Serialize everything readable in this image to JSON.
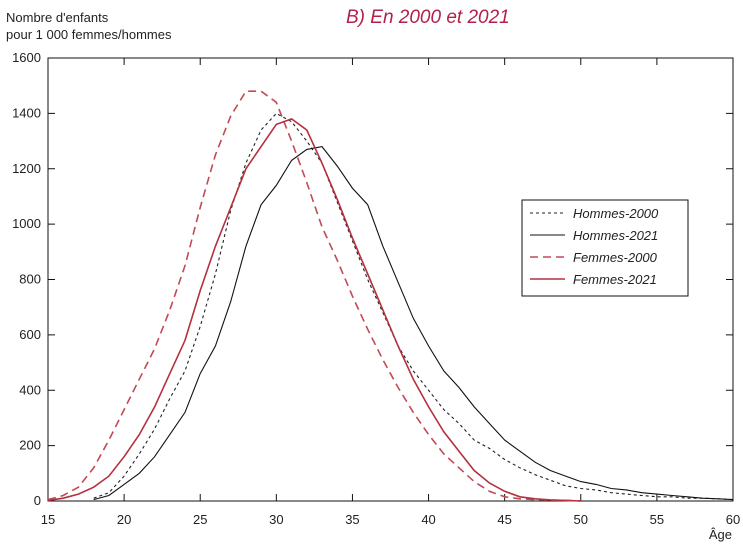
{
  "chart_data": {
    "type": "line",
    "title": "B) En 2000 et 2021",
    "ylabel_line1": "Nombre d'enfants",
    "ylabel_line2": "pour 1 000 femmes/hommes",
    "xlabel": "Âge",
    "xlim": [
      15,
      60
    ],
    "ylim": [
      0,
      1600
    ],
    "xticks": [
      15,
      20,
      25,
      30,
      35,
      40,
      45,
      50,
      55,
      60
    ],
    "yticks": [
      0,
      200,
      400,
      600,
      800,
      1000,
      1200,
      1400,
      1600
    ],
    "legend_position": "right",
    "series": [
      {
        "name": "Hommes-2000",
        "color": "#222222",
        "style": "dotted",
        "x": [
          18,
          19,
          20,
          21,
          22,
          23,
          24,
          25,
          26,
          27,
          28,
          29,
          30,
          31,
          32,
          33,
          34,
          35,
          36,
          37,
          38,
          39,
          40,
          41,
          42,
          43,
          44,
          45,
          46,
          47,
          48,
          49,
          50,
          51,
          52,
          53,
          54,
          55,
          56,
          57,
          58,
          59,
          60
        ],
        "y": [
          10,
          30,
          90,
          170,
          260,
          370,
          470,
          630,
          820,
          1050,
          1220,
          1340,
          1400,
          1370,
          1300,
          1220,
          1080,
          940,
          800,
          680,
          560,
          470,
          400,
          330,
          280,
          220,
          190,
          150,
          120,
          95,
          75,
          55,
          45,
          40,
          30,
          25,
          20,
          15,
          15,
          10,
          10,
          8,
          5
        ]
      },
      {
        "name": "Hommes-2021",
        "color": "#111111",
        "style": "solid",
        "x": [
          18,
          19,
          20,
          21,
          22,
          23,
          24,
          25,
          26,
          27,
          28,
          29,
          30,
          31,
          32,
          33,
          34,
          35,
          36,
          37,
          38,
          39,
          40,
          41,
          42,
          43,
          44,
          45,
          46,
          47,
          48,
          49,
          50,
          51,
          52,
          53,
          54,
          55,
          56,
          57,
          58,
          59,
          60
        ],
        "y": [
          5,
          20,
          60,
          100,
          160,
          240,
          320,
          460,
          560,
          720,
          920,
          1070,
          1140,
          1230,
          1270,
          1280,
          1210,
          1130,
          1070,
          920,
          790,
          660,
          560,
          470,
          410,
          340,
          280,
          220,
          180,
          140,
          110,
          90,
          70,
          60,
          45,
          40,
          30,
          25,
          20,
          15,
          10,
          8,
          5
        ]
      },
      {
        "name": "Femmes-2000",
        "color": "#c24a55",
        "style": "dashed",
        "x": [
          15,
          16,
          17,
          18,
          19,
          20,
          21,
          22,
          23,
          24,
          25,
          26,
          27,
          28,
          29,
          30,
          31,
          32,
          33,
          34,
          35,
          36,
          37,
          38,
          39,
          40,
          41,
          42,
          43,
          44,
          45,
          46,
          47,
          48,
          49,
          50
        ],
        "y": [
          5,
          20,
          50,
          120,
          220,
          330,
          440,
          550,
          690,
          850,
          1060,
          1250,
          1390,
          1480,
          1480,
          1440,
          1300,
          1150,
          990,
          870,
          740,
          620,
          510,
          410,
          320,
          240,
          170,
          120,
          70,
          35,
          15,
          8,
          5,
          3,
          2,
          0
        ]
      },
      {
        "name": "Femmes-2021",
        "color": "#b5303e",
        "style": "solid",
        "x": [
          15,
          16,
          17,
          18,
          19,
          20,
          21,
          22,
          23,
          24,
          25,
          26,
          27,
          28,
          29,
          30,
          31,
          32,
          33,
          34,
          35,
          36,
          37,
          38,
          39,
          40,
          41,
          42,
          43,
          44,
          45,
          46,
          47,
          48,
          49,
          50
        ],
        "y": [
          2,
          10,
          25,
          50,
          90,
          160,
          240,
          340,
          460,
          580,
          760,
          920,
          1060,
          1200,
          1280,
          1360,
          1380,
          1340,
          1220,
          1090,
          950,
          820,
          690,
          560,
          440,
          340,
          250,
          180,
          110,
          65,
          35,
          15,
          8,
          4,
          2,
          0
        ]
      }
    ]
  }
}
